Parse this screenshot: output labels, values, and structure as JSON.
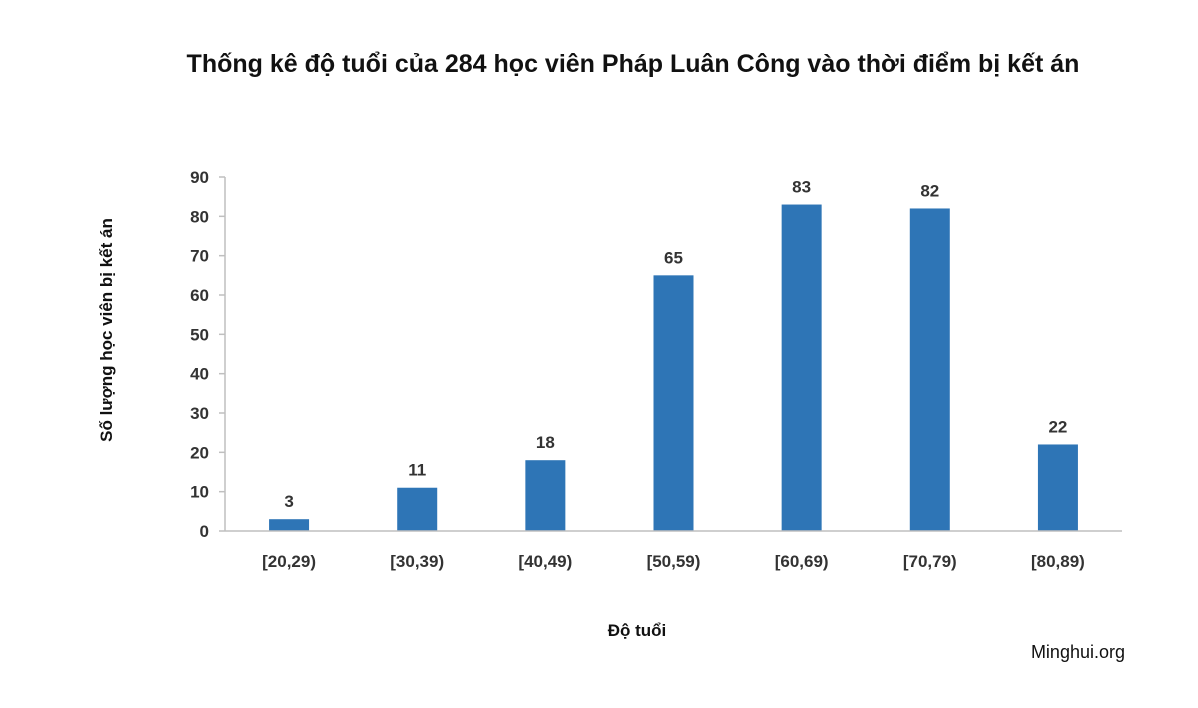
{
  "chart_data": {
    "type": "bar",
    "title": "Thống kê độ tuổi của 284 học viên Pháp Luân Công vào thời điểm bị kết án",
    "xlabel": "Độ tuổi",
    "ylabel": "Số lượng học viên bị kết án",
    "categories": [
      "[20,29)",
      "[30,39)",
      "[40,49)",
      "[50,59)",
      "[60,69)",
      "[70,79)",
      "[80,89)"
    ],
    "values": [
      3,
      11,
      18,
      65,
      83,
      82,
      22
    ],
    "ylim": [
      0,
      90
    ],
    "yticks": [
      0,
      10,
      20,
      30,
      40,
      50,
      60,
      70,
      80,
      90
    ],
    "grid": false,
    "legend": "none",
    "bar_color": "#2E75B6",
    "axis_color": "#BFBFBF"
  },
  "source": "Minghui.org"
}
